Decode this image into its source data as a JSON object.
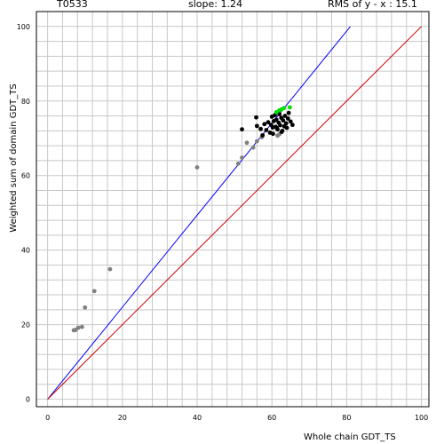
{
  "header": {
    "target": "T0533",
    "slope": "slope: 1.24",
    "rms": "RMS of  y - x : 15.1"
  },
  "chart_data": {
    "type": "scatter",
    "xlabel": "Whole chain GDT_TS",
    "ylabel": "Weighted sum of domain GDT_TS",
    "xlim": [
      -3,
      102
    ],
    "ylim": [
      -2,
      104
    ],
    "xticks": [
      0,
      20,
      40,
      60,
      80,
      100
    ],
    "yticks": [
      0,
      20,
      40,
      60,
      80,
      100
    ],
    "grid": true,
    "lines": [
      {
        "color": "#0000ff",
        "x": [
          0,
          81
        ],
        "y": [
          0,
          100
        ]
      },
      {
        "color": "#cc0000",
        "x": [
          0,
          100
        ],
        "y": [
          0,
          100
        ]
      }
    ],
    "series": [
      {
        "color": "#808080",
        "points": [
          [
            7,
            18.5
          ],
          [
            7.5,
            18.6
          ],
          [
            8.2,
            19.2
          ],
          [
            9.2,
            19.4
          ],
          [
            10,
            24.6
          ],
          [
            12.5,
            29
          ],
          [
            16.7,
            34.9
          ],
          [
            40,
            62.2
          ],
          [
            51,
            63.2
          ],
          [
            52,
            64.8
          ],
          [
            53.3,
            68.8
          ],
          [
            55,
            67.5
          ],
          [
            56,
            69.2
          ],
          [
            57.3,
            70.3
          ],
          [
            61.5,
            70.7
          ],
          [
            62,
            71.1
          ]
        ]
      },
      {
        "color": "#000000",
        "points": [
          [
            52,
            72.4
          ],
          [
            55.8,
            75.6
          ],
          [
            56,
            73.3
          ],
          [
            57,
            72.5
          ],
          [
            57.5,
            70.8
          ],
          [
            58,
            73.8
          ],
          [
            58.5,
            72.2
          ],
          [
            59,
            74.3
          ],
          [
            59.5,
            71.5
          ],
          [
            59.8,
            73.6
          ],
          [
            60,
            75.8
          ],
          [
            60.2,
            72.9
          ],
          [
            60.5,
            74.6
          ],
          [
            60.8,
            76.2
          ],
          [
            61,
            73.1
          ],
          [
            61.2,
            75
          ],
          [
            61.5,
            72.4
          ],
          [
            61.8,
            74.2
          ],
          [
            62,
            76.5
          ],
          [
            62.2,
            73.5
          ],
          [
            62.5,
            75.5
          ],
          [
            62.8,
            72
          ],
          [
            63,
            74.8
          ],
          [
            63.3,
            73.2
          ],
          [
            63.5,
            76
          ],
          [
            63.8,
            74
          ],
          [
            64,
            72.8
          ],
          [
            64.3,
            75.3
          ],
          [
            64.5,
            76.8
          ],
          [
            65,
            74.5
          ],
          [
            65.5,
            73.6
          ],
          [
            60.3,
            71.2
          ],
          [
            61.3,
            72.8
          ],
          [
            62.6,
            71.7
          ]
        ]
      },
      {
        "color": "#00dd00",
        "points": [
          [
            61.2,
            77
          ],
          [
            62,
            77.5
          ],
          [
            62.5,
            77.7
          ],
          [
            63.2,
            78.1
          ],
          [
            64.8,
            78.3
          ]
        ]
      }
    ]
  }
}
